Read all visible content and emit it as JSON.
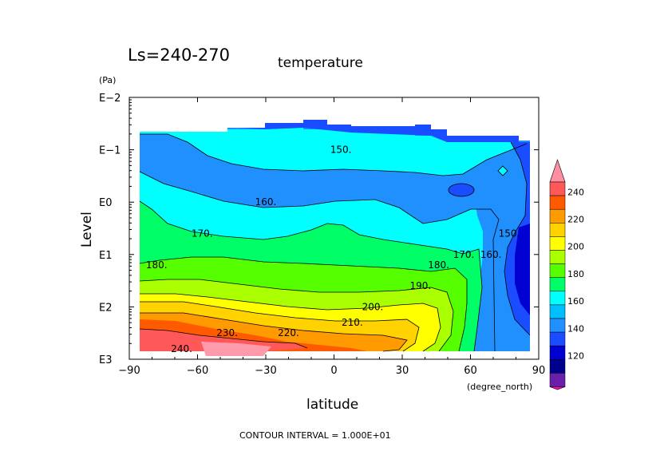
{
  "chart_data": {
    "type": "heatmap",
    "subtype": "filled-contour",
    "title": "temperature",
    "subtitle": "Ls=240-270",
    "xlabel": "latitude",
    "xunit": "(degree_north)",
    "ylabel": "Level",
    "yunit": "(Pa)",
    "ylog": true,
    "xlim": [
      -90,
      90
    ],
    "ylim": [
      "E3",
      "E-2"
    ],
    "x_ticks": [
      -90,
      -60,
      -30,
      0,
      30,
      60,
      90
    ],
    "x_tick_labels": [
      "−90",
      "−60",
      "−30",
      "0",
      "30",
      "60",
      "90"
    ],
    "y_tick_labels": [
      "E−2",
      "E−1",
      "E0",
      "E1",
      "E2",
      "E3"
    ],
    "contour_interval": 10,
    "contour_labels": [
      {
        "text": "150.",
        "lat": 3,
        "level": "E-1"
      },
      {
        "text": "160.",
        "lat": -30,
        "level": "E0"
      },
      {
        "text": "170.",
        "lat": -58,
        "level": "E0.6"
      },
      {
        "text": "180.",
        "lat": -78,
        "level": "E1.2"
      },
      {
        "text": "170.",
        "lat": 57,
        "level": "E1"
      },
      {
        "text": "180.",
        "lat": 46,
        "level": "E1.2"
      },
      {
        "text": "190.",
        "lat": 38,
        "level": "E1.6"
      },
      {
        "text": "200.",
        "lat": 17,
        "level": "E2"
      },
      {
        "text": "210.",
        "lat": 8,
        "level": "E2.3"
      },
      {
        "text": "220.",
        "lat": -20,
        "level": "E2.5"
      },
      {
        "text": "230.",
        "lat": -47,
        "level": "E2.5"
      },
      {
        "text": "240.",
        "lat": -67,
        "level": "E2.8"
      },
      {
        "text": "160.",
        "lat": 69,
        "level": "E1"
      },
      {
        "text": "150.",
        "lat": 77,
        "level": "E0.6"
      }
    ],
    "colorbar": {
      "levels": [
        120,
        140,
        160,
        180,
        200,
        220,
        240
      ],
      "labels": [
        "240",
        "220",
        "200",
        "180",
        "160",
        "140",
        "120"
      ],
      "colors": [
        "#ff8fa0",
        "#ff5858",
        "#ff5a00",
        "#ff9a00",
        "#ffd200",
        "#ffff00",
        "#aaff00",
        "#55ff00",
        "#00ff66",
        "#00ffff",
        "#00bfff",
        "#2090ff",
        "#1a4dff",
        "#0000d0",
        "#000090",
        "#6a1fa8",
        "#ff0aba"
      ]
    },
    "footer": "CONTOUR INTERVAL = 1.000E+01"
  }
}
